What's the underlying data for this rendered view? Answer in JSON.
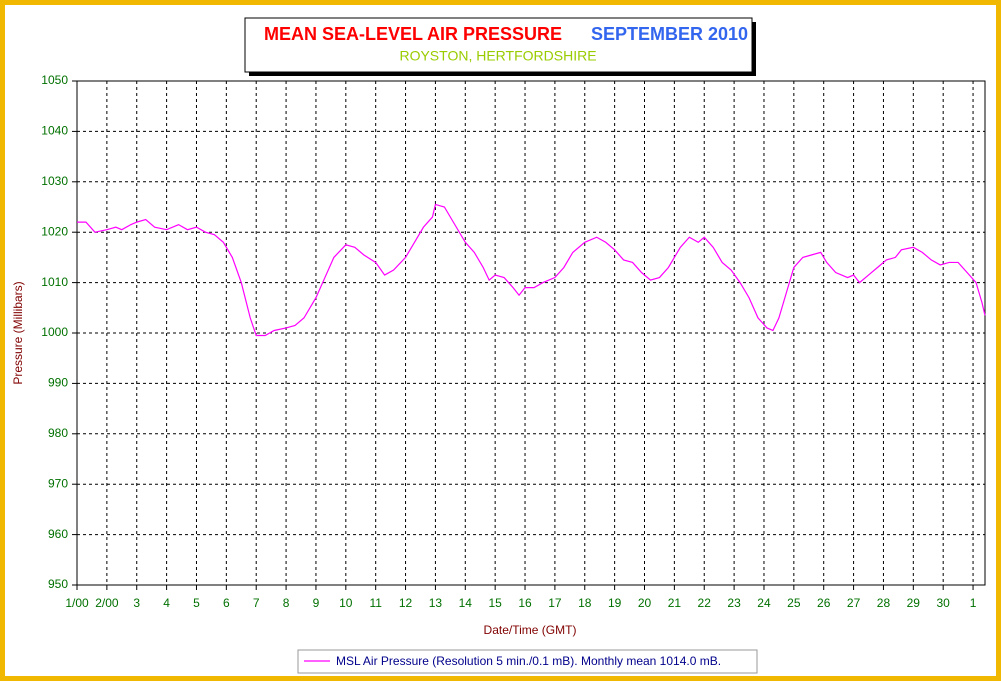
{
  "chart_data": {
    "type": "line",
    "title": "MEAN SEA-LEVEL AIR PRESSURE",
    "title_suffix": "SEPTEMBER 2010",
    "subtitle": "ROYSTON, HERTFORDSHIRE",
    "x_label": "Date/Time (GMT)",
    "y_label": "Pressure (Millibars)",
    "xlim": [
      1,
      31.4
    ],
    "ylim": [
      950,
      1050
    ],
    "xticks": [
      {
        "value": 1,
        "label": "1/00"
      },
      {
        "value": 2,
        "label": "2/00"
      },
      3,
      4,
      5,
      6,
      7,
      8,
      9,
      10,
      11,
      12,
      13,
      14,
      15,
      16,
      17,
      18,
      19,
      20,
      21,
      22,
      23,
      24,
      25,
      26,
      27,
      28,
      29,
      30,
      {
        "value": 31,
        "label": "1"
      }
    ],
    "yticks": [
      950,
      960,
      970,
      980,
      990,
      1000,
      1010,
      1020,
      1030,
      1040,
      1050
    ],
    "grid": true,
    "series": [
      {
        "name": "MSL Air Pressure (Resolution 5 min./0.1 mB). Monthly mean 1014.0 mB.",
        "color": "#ff00ff",
        "x": [
          1.0,
          1.3,
          1.6,
          2.0,
          2.3,
          2.5,
          2.8,
          3.0,
          3.3,
          3.6,
          4.0,
          4.4,
          4.7,
          5.0,
          5.3,
          5.6,
          5.9,
          6.2,
          6.5,
          6.8,
          7.0,
          7.3,
          7.6,
          8.0,
          8.3,
          8.6,
          9.0,
          9.3,
          9.6,
          10.0,
          10.3,
          10.6,
          11.0,
          11.3,
          11.6,
          12.0,
          12.3,
          12.6,
          12.9,
          13.0,
          13.3,
          13.6,
          14.0,
          14.3,
          14.6,
          14.8,
          15.0,
          15.3,
          15.6,
          15.8,
          16.0,
          16.3,
          16.6,
          17.0,
          17.3,
          17.6,
          18.0,
          18.4,
          18.7,
          19.0,
          19.3,
          19.6,
          19.9,
          20.2,
          20.5,
          20.8,
          21.2,
          21.5,
          21.8,
          22.0,
          22.3,
          22.6,
          22.9,
          23.2,
          23.5,
          23.8,
          24.1,
          24.3,
          24.5,
          24.8,
          25.0,
          25.3,
          25.6,
          25.9,
          26.1,
          26.4,
          26.8,
          27.0,
          27.2,
          27.5,
          27.8,
          28.1,
          28.4,
          28.6,
          29.0,
          29.3,
          29.6,
          29.9,
          30.2,
          30.5,
          30.8,
          31.1,
          31.3,
          31.4
        ],
        "values": [
          1022,
          1022,
          1020,
          1020.5,
          1021,
          1020.5,
          1021.5,
          1022,
          1022.5,
          1021,
          1020.5,
          1021.5,
          1020.5,
          1021,
          1020,
          1019.5,
          1018,
          1015,
          1010,
          1003,
          999.5,
          999.5,
          1000.5,
          1001,
          1001.5,
          1003,
          1007,
          1011,
          1015,
          1017.5,
          1017,
          1015.5,
          1014,
          1011.5,
          1012.5,
          1015,
          1018,
          1021,
          1023,
          1025.5,
          1025,
          1022,
          1018,
          1016,
          1013,
          1010.5,
          1011.5,
          1011,
          1009,
          1007.5,
          1009,
          1009,
          1010,
          1011,
          1013,
          1016,
          1018,
          1019,
          1018,
          1016.5,
          1014.5,
          1014,
          1012,
          1010.5,
          1011,
          1013,
          1017,
          1019,
          1018,
          1019,
          1017,
          1014,
          1012.5,
          1010,
          1007,
          1003,
          1001,
          1000.5,
          1003,
          1009,
          1013,
          1015,
          1015.5,
          1016,
          1014,
          1012,
          1011,
          1011.5,
          1010,
          1011.5,
          1013,
          1014.5,
          1015,
          1016.5,
          1017,
          1016,
          1014.5,
          1013.5,
          1014,
          1014,
          1012,
          1010,
          1006,
          1003.5
        ]
      }
    ]
  }
}
